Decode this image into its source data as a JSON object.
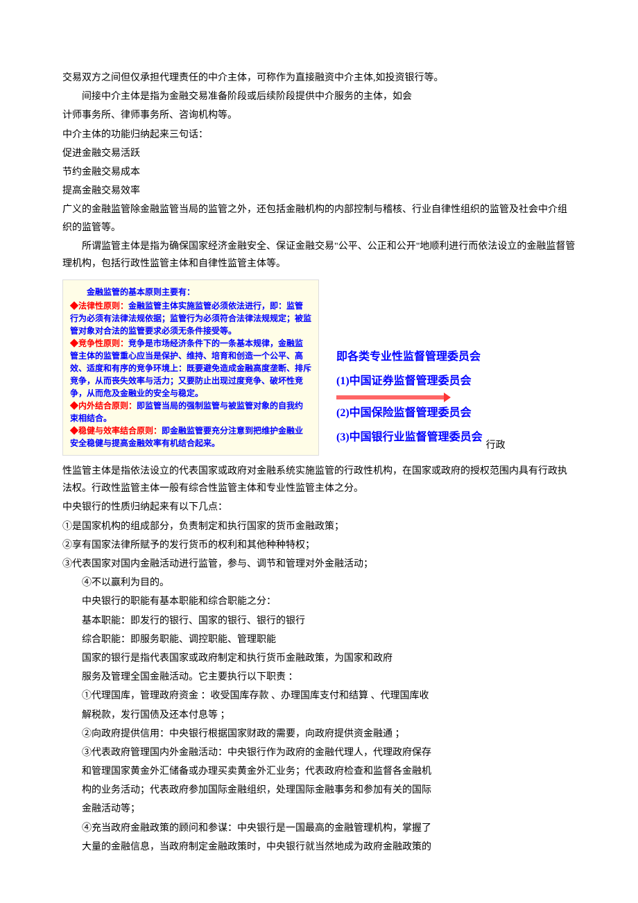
{
  "paragraphs": {
    "p1": "交易双方之间但仅承担代理责任的中介主体，可称作为直接融资中介主体,如投资银行等。",
    "p2": "间接中介主体是指为金融交易准备阶段或后续阶段提供中介服务的主体，如会",
    "p3": "计师事务所、律师事务所、咨询机构等。",
    "p4": "中介主体的功能归纳起来三句话：",
    "p5": "促进金融交易活跃",
    "p6": "节约金融交易成本",
    "p7": "提高金融交易效率",
    "p8": "广义的金融监管除金融监管当局的监管之外，还包括金融机构的内部控制与稽核、行业自律性组织的监管及社会中介组织的监管等。",
    "p9": "所谓监管主体是指为确保国家经济金融安全、保证金融交易\"公平、公正和公开\"地顺利进行而依法设立的金融监督管理机构，包括行政性监管主体和自律性监管主体等。"
  },
  "yellowBox": {
    "title": "金融监管的基本原则主要有：",
    "items": [
      {
        "label": "法律性原则：",
        "text": "金融监管主体实施监管必须依法进行，即：监管行为必须有法律法规依据；监管行为必须符合法律法规规定；被监管对象对合法的监管要求必须无条件接受等。"
      },
      {
        "label": "竞争性原则：",
        "text": "竞争是市场经济条件下的一条基本规律，金融监管主体的监管重心应当是保护、维持、培育和创造一个公平、高效、适度和有序的竞争环境上：既要避免造成金融高度垄断、排斥竞争，从而丧失效率与活力；又要防止出现过度竞争、破坏性竞争，从而危及金融业的安全与稳定。"
      },
      {
        "label": "内外结合原则：",
        "text": "即监管当局的强制监管与被监管对象的自我约束相结合。"
      },
      {
        "label": "稳健与效率结合原则：",
        "text": "即金融监管要充分注意到把维护金融业安全稳健与提高金融效率有机结合起来。"
      }
    ]
  },
  "rightBox": {
    "header": "即各类专业性监督管理委员会",
    "items": [
      "(1)中国证券监督管理委员会",
      "(2)中国保险监督管理委员会",
      "(3)中国银行业监督管理委员会"
    ]
  },
  "trailing": "行政",
  "afterBox": {
    "p1": "性监管主体是指依法设立的代表国家或政府对金融系统实施监管的行政性机构，在国家或政府的授权范围内具有行政执法权。行政性监管主体一般有综合性监管主体和专业性监管主体之分。",
    "p2": "中央银行的性质归纳起来有以下几点：",
    "p3": "①是国家机构的组成部分，负责制定和执行国家的货币金融政策；",
    "p4": "②享有国家法律所赋予的发行货币的权利和其他种种特权；",
    "p5": "③代表国家对国内金融活动进行监管，参与、调节和管理对外金融活动；",
    "p6": "④不以赢利为目的。",
    "p7": "中央银行的职能有基本职能和综合职能之分：",
    "p8": "基本职能：即发行的银行、国家的银行、银行的银行",
    "p9": "综合职能：即服务职能、调控职能、管理职能",
    "p10": "国家的银行是指代表国家或政府制定和执行货币金融政策，为国家和政府",
    "p11": "服务及管理全国金融活动。它主要执行以下职责 ：",
    "p12": "①代理国库，管理政府资金 ：收受国库存款 、办理国库支付和结算 、代理国库收",
    "p13": "解税款，发行国债及还本付息等 ；",
    "p14": "②向政府提供信用：中央银行根据国家财政的需要，向政府提供资金融通 ；",
    "p15": "③代表政府管理国内外金融活动：中央银行作为政府的金融代理人，代理政府保存",
    "p16": "和管理国家黄金外汇储备或办理买卖黄金外汇业务；代表政府检查和监督各金融机",
    "p17": "构的业务活动；代表政府参加国际金融组织，处理国际金融事务和参加有关的国际",
    "p18": "金融活动等；",
    "p19": "④充当政府金融政策的顾问和参谋：中央银行是一国最高的金融管理机构，掌握了",
    "p20": "大量的金融信息，当政府制定金融政策时，中央银行就当然地成为政府金融政策的"
  }
}
